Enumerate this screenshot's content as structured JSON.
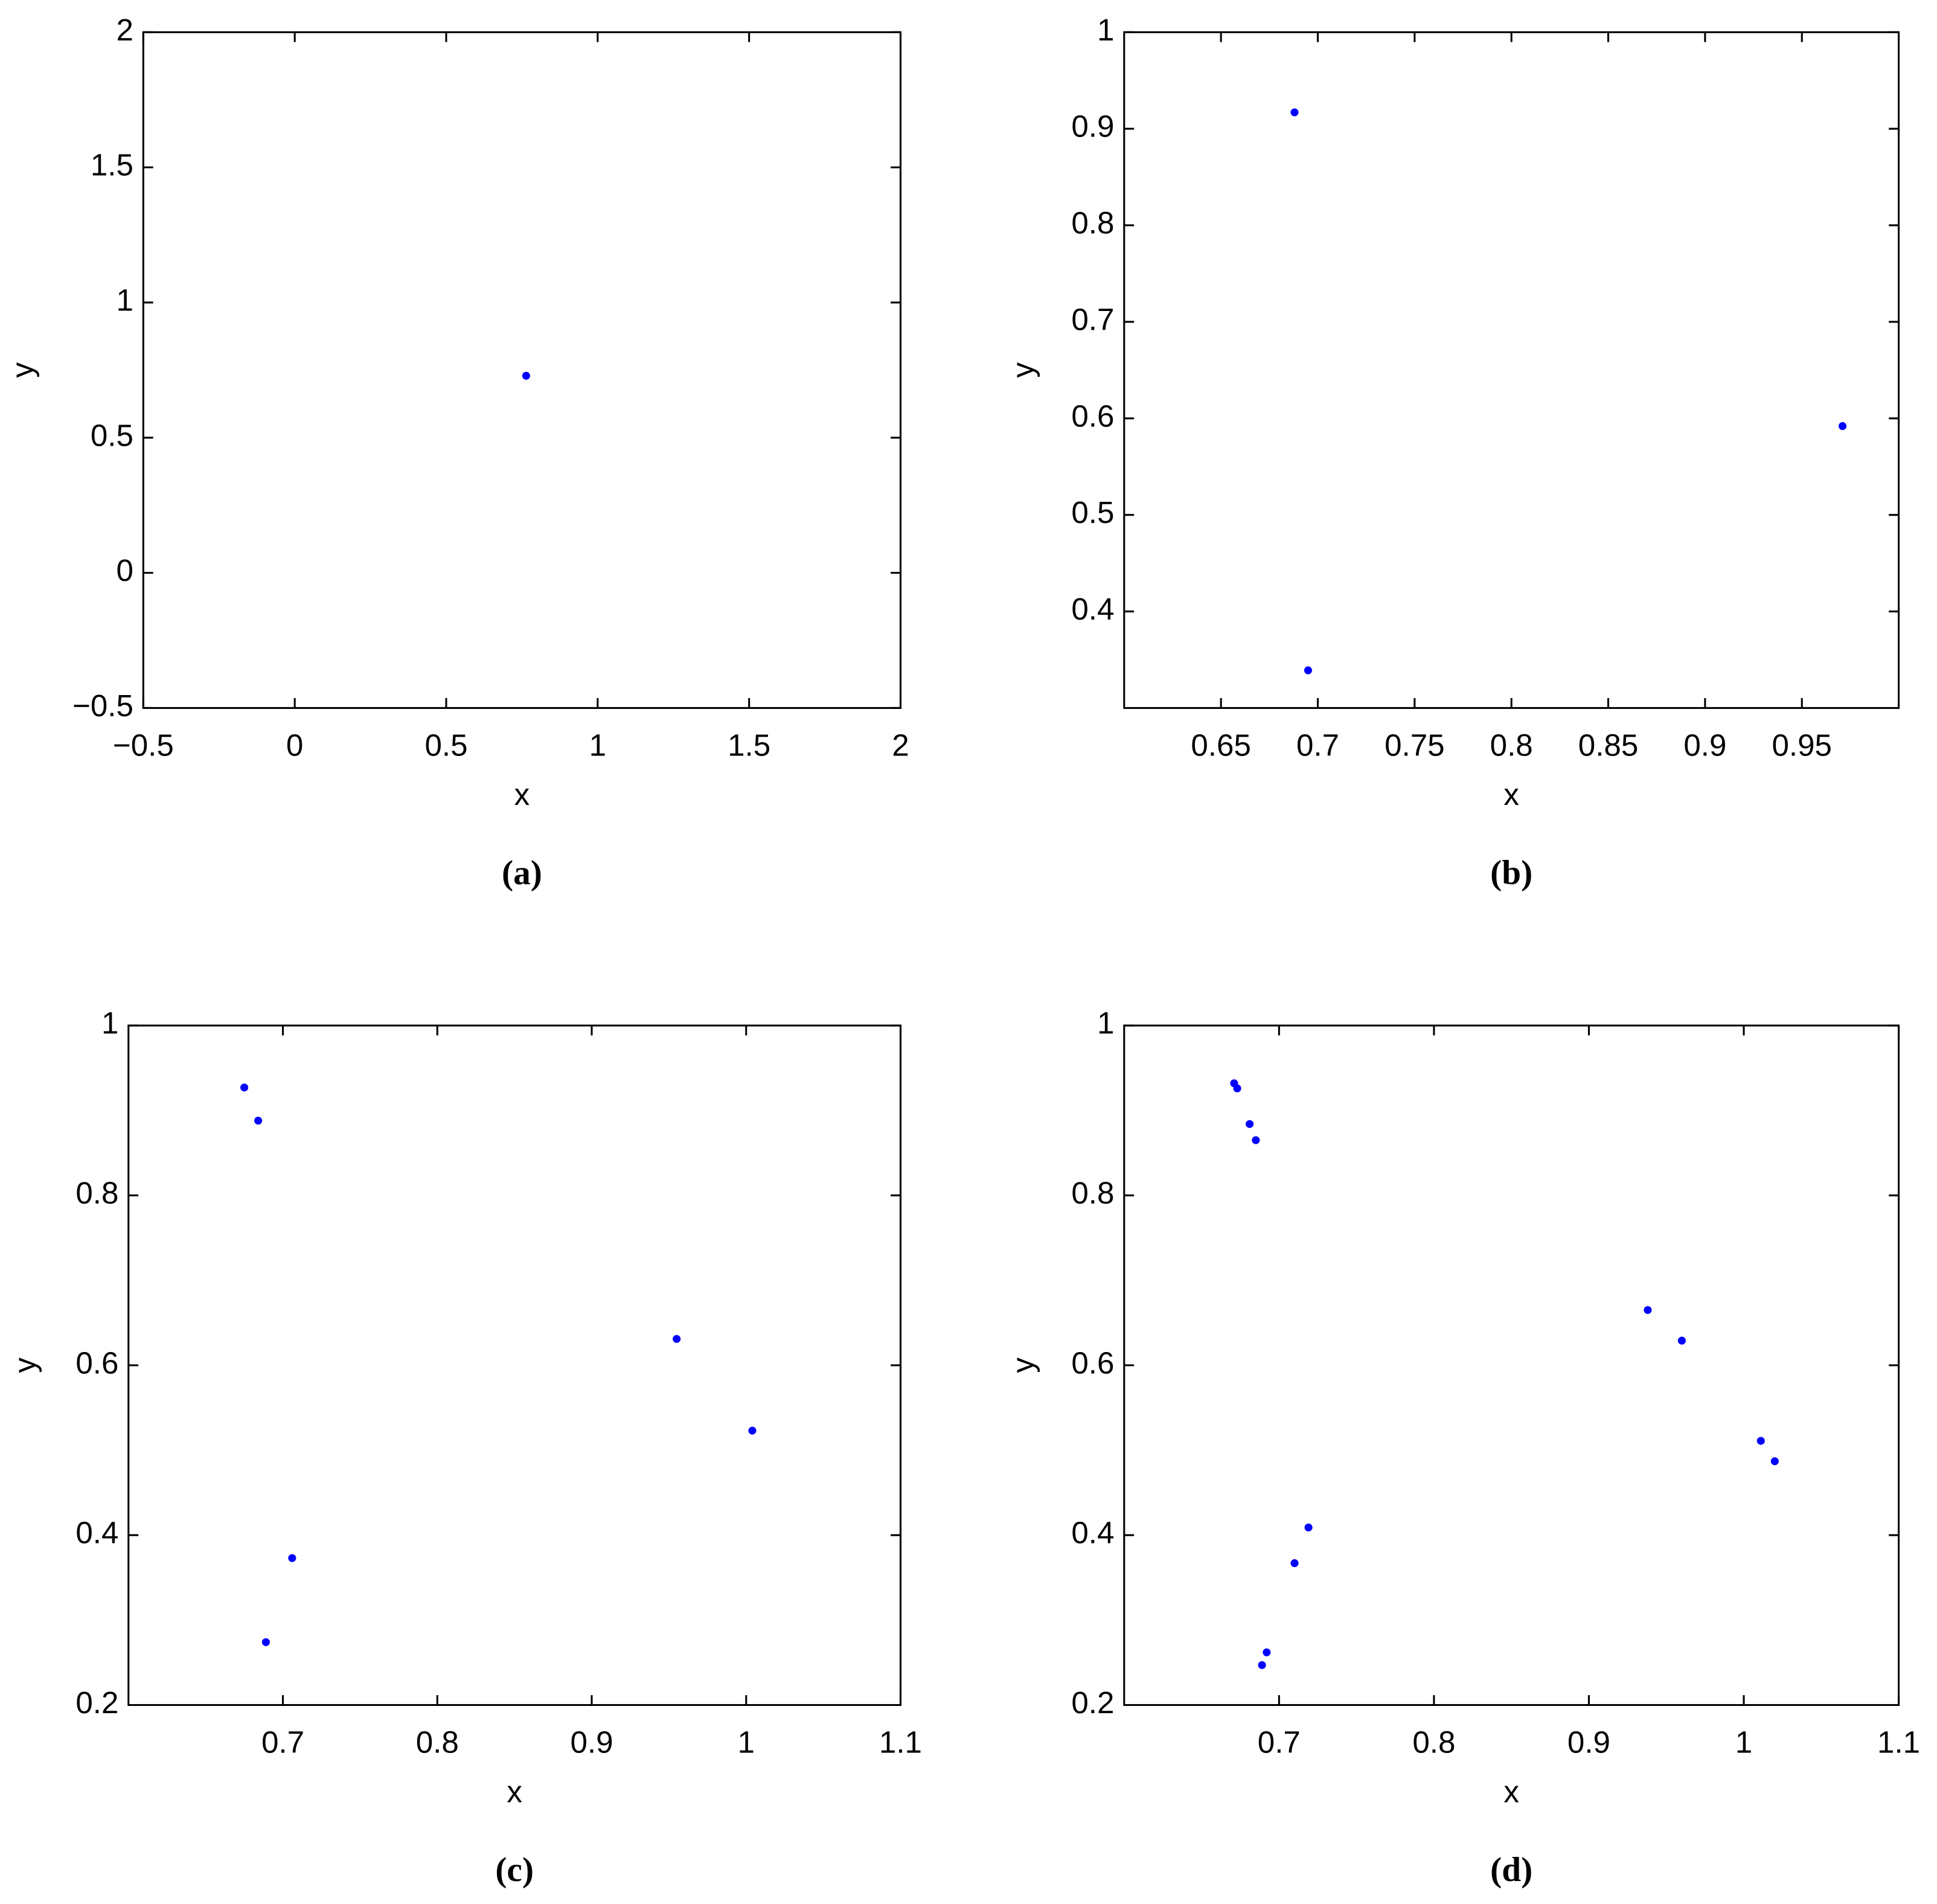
{
  "chart_data": [
    {
      "type": "scatter",
      "title": "(a)",
      "x_label": "x",
      "y_label": "y",
      "color": "#0000ff",
      "xlim": [
        -0.5,
        2
      ],
      "ylim": [
        -0.5,
        2
      ],
      "xticks": [
        {
          "value": -0.5,
          "label": "−0.5"
        },
        0,
        0.5,
        1,
        1.5,
        2
      ],
      "yticks": [
        {
          "value": -0.5,
          "label": "−0.5"
        },
        0,
        0.5,
        1,
        1.5,
        2
      ],
      "x": [
        0.764
      ],
      "values": [
        0.729
      ]
    },
    {
      "type": "scatter",
      "title": "(b)",
      "x_label": "x",
      "y_label": "y",
      "color": "#0000ff",
      "xlim": [
        0.6,
        1.0
      ],
      "ylim": [
        0.3,
        1
      ],
      "xticks": [
        0.65,
        0.7,
        0.75,
        0.8,
        0.85,
        0.9,
        0.95
      ],
      "yticks": [
        0.4,
        0.5,
        0.6,
        0.7,
        0.8,
        0.9,
        1
      ],
      "x": [
        0.688,
        0.695,
        0.971
      ],
      "values": [
        0.917,
        0.339,
        0.592
      ]
    },
    {
      "type": "scatter",
      "title": "(c)",
      "x_label": "x",
      "y_label": "y",
      "color": "#0000ff",
      "xlim": [
        0.6,
        1.1
      ],
      "ylim": [
        0.2,
        1
      ],
      "xticks": [
        0.7,
        0.8,
        0.9,
        1,
        1.1
      ],
      "yticks": [
        0.2,
        0.4,
        0.6,
        0.8,
        1
      ],
      "x": [
        0.675,
        0.684,
        0.706,
        0.689,
        0.955,
        1.004
      ],
      "values": [
        0.927,
        0.888,
        0.373,
        0.274,
        0.631,
        0.523
      ]
    },
    {
      "type": "scatter",
      "title": "(d)",
      "x_label": "x",
      "y_label": "y",
      "color": "#0000ff",
      "xlim": [
        0.6,
        1.1
      ],
      "ylim": [
        0.2,
        1
      ],
      "xticks": [
        0.7,
        0.8,
        0.9,
        1,
        1.1
      ],
      "yticks": [
        0.2,
        0.4,
        0.6,
        0.8,
        1
      ],
      "x": [
        0.671,
        0.673,
        0.681,
        0.685,
        0.719,
        0.71,
        0.692,
        0.689,
        0.938,
        0.96,
        1.011,
        1.02
      ],
      "values": [
        0.932,
        0.926,
        0.884,
        0.865,
        0.409,
        0.367,
        0.262,
        0.247,
        0.665,
        0.629,
        0.511,
        0.487
      ]
    }
  ]
}
